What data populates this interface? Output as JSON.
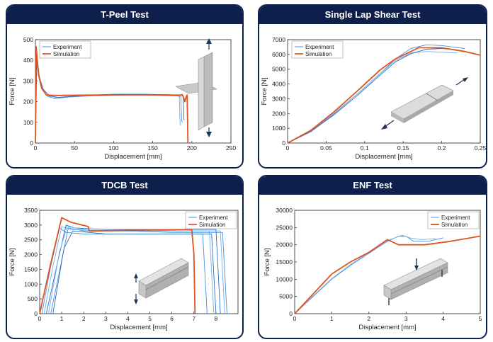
{
  "chart_data": [
    {
      "type": "line",
      "title": "T-Peel Test",
      "xlabel": "Displacement [mm]",
      "ylabel": "Force [N]",
      "xlim": [
        0,
        250
      ],
      "ylim": [
        0,
        500
      ],
      "xticks": [
        0,
        50,
        100,
        150,
        200,
        250
      ],
      "yticks": [
        0,
        100,
        200,
        300,
        400,
        500
      ],
      "legend": [
        "Experiment",
        "Simulation"
      ],
      "legend_position": "top-left",
      "series": [
        {
          "name": "Experiment",
          "color": "#4a90e2",
          "points": [
            [
              0,
              0
            ],
            [
              1,
              440
            ],
            [
              3,
              360
            ],
            [
              6,
              300
            ],
            [
              10,
              255
            ],
            [
              16,
              225
            ],
            [
              25,
              215
            ],
            [
              40,
              222
            ],
            [
              70,
              228
            ],
            [
              100,
              231
            ],
            [
              130,
              233
            ],
            [
              160,
              230
            ],
            [
              180,
              228
            ],
            [
              186,
              225
            ],
            [
              187,
              110
            ],
            [
              188,
              100
            ]
          ]
        },
        {
          "name": "Experiment",
          "color": "#6fb0ea",
          "points": [
            [
              0,
              0
            ],
            [
              1,
              430
            ],
            [
              4,
              340
            ],
            [
              8,
              275
            ],
            [
              14,
              235
            ],
            [
              22,
              218
            ],
            [
              40,
              225
            ],
            [
              80,
              232
            ],
            [
              120,
              234
            ],
            [
              160,
              232
            ],
            [
              184,
              230
            ],
            [
              185,
              95
            ],
            [
              186,
              85
            ]
          ]
        },
        {
          "name": "Experiment",
          "color": "#2a6fbd",
          "points": [
            [
              0,
              0
            ],
            [
              2,
              420
            ],
            [
              5,
              320
            ],
            [
              10,
              260
            ],
            [
              18,
              228
            ],
            [
              30,
              220
            ],
            [
              60,
              230
            ],
            [
              100,
              236
            ],
            [
              140,
              236
            ],
            [
              175,
              233
            ],
            [
              189,
              230
            ],
            [
              190,
              110
            ]
          ]
        },
        {
          "name": "Simulation",
          "color": "#e0531e",
          "points": [
            [
              0,
              0
            ],
            [
              1,
              465
            ],
            [
              2,
              420
            ],
            [
              4,
              330
            ],
            [
              8,
              265
            ],
            [
              14,
              232
            ],
            [
              25,
              230
            ],
            [
              100,
              233
            ],
            [
              150,
              233
            ],
            [
              187,
              232
            ],
            [
              187,
              235
            ],
            [
              188,
              232
            ],
            [
              190,
              215
            ],
            [
              191,
              200
            ],
            [
              193,
              225
            ],
            [
              194,
              232
            ],
            [
              195,
              0
            ]
          ]
        }
      ]
    },
    {
      "type": "line",
      "title": "Single Lap Shear Test",
      "xlabel": "Displacement [mm]",
      "ylabel": "Force [N]",
      "xlim": [
        0,
        0.25
      ],
      "ylim": [
        0,
        7000
      ],
      "xticks": [
        0,
        0.05,
        0.1,
        0.15,
        0.2,
        0.25
      ],
      "yticks": [
        0,
        1000,
        2000,
        3000,
        4000,
        5000,
        6000,
        7000
      ],
      "legend": [
        "Experiment",
        "Simulation"
      ],
      "legend_position": "top-left",
      "series": [
        {
          "name": "Experiment",
          "color": "#4a90e2",
          "points": [
            [
              0,
              0
            ],
            [
              0.03,
              800
            ],
            [
              0.06,
              2000
            ],
            [
              0.09,
              3300
            ],
            [
              0.12,
              4700
            ],
            [
              0.14,
              5700
            ],
            [
              0.16,
              6400
            ],
            [
              0.18,
              6650
            ],
            [
              0.2,
              6600
            ],
            [
              0.23,
              6400
            ]
          ]
        },
        {
          "name": "Experiment",
          "color": "#6fb0ea",
          "points": [
            [
              0,
              0
            ],
            [
              0.03,
              750
            ],
            [
              0.06,
              1950
            ],
            [
              0.09,
              3300
            ],
            [
              0.12,
              4700
            ],
            [
              0.14,
              5600
            ],
            [
              0.16,
              6100
            ],
            [
              0.18,
              6200
            ],
            [
              0.2,
              6150
            ],
            [
              0.22,
              6100
            ]
          ]
        },
        {
          "name": "Experiment",
          "color": "#2a6fbd",
          "points": [
            [
              0,
              0
            ],
            [
              0.03,
              780
            ],
            [
              0.06,
              1900
            ],
            [
              0.09,
              3200
            ],
            [
              0.12,
              4600
            ],
            [
              0.14,
              5500
            ],
            [
              0.16,
              6050
            ],
            [
              0.18,
              6350
            ],
            [
              0.2,
              6400
            ],
            [
              0.22,
              6300
            ]
          ]
        },
        {
          "name": "Simulation",
          "color": "#e0531e",
          "points": [
            [
              0,
              0
            ],
            [
              0.03,
              850
            ],
            [
              0.06,
              2100
            ],
            [
              0.09,
              3500
            ],
            [
              0.12,
              4950
            ],
            [
              0.14,
              5700
            ],
            [
              0.16,
              6200
            ],
            [
              0.17,
              6450
            ],
            [
              0.2,
              6450
            ],
            [
              0.23,
              6200
            ],
            [
              0.25,
              5950
            ]
          ]
        }
      ]
    },
    {
      "type": "line",
      "title": "TDCB Test",
      "xlabel": "Displacement [mm]",
      "ylabel": "Force [N]",
      "xlim": [
        0,
        9
      ],
      "ylim": [
        0,
        3500
      ],
      "xticks": [
        0,
        1,
        2,
        3,
        4,
        5,
        6,
        7,
        8
      ],
      "yticks": [
        0,
        500,
        1000,
        1500,
        2000,
        2500,
        3000,
        3500
      ],
      "legend": [
        "Experiment",
        "Simulation"
      ],
      "legend_position": "top-right",
      "series": [
        {
          "name": "Experiment",
          "color": "#4a90e2",
          "points": [
            [
              0.1,
              0
            ],
            [
              0.5,
              1600
            ],
            [
              0.9,
              2900
            ],
            [
              1.2,
              2750
            ],
            [
              2,
              2700
            ],
            [
              4,
              2700
            ],
            [
              6,
              2700
            ],
            [
              7.4,
              2700
            ],
            [
              7.6,
              0
            ]
          ]
        },
        {
          "name": "Experiment",
          "color": "#6fb0ea",
          "points": [
            [
              0.2,
              0
            ],
            [
              0.6,
              1600
            ],
            [
              1.0,
              2950
            ],
            [
              1.4,
              2850
            ],
            [
              3,
              2800
            ],
            [
              5,
              2800
            ],
            [
              7.7,
              2800
            ],
            [
              7.9,
              0
            ]
          ]
        },
        {
          "name": "Experiment",
          "color": "#2a6fbd",
          "points": [
            [
              0.3,
              0
            ],
            [
              0.8,
              1700
            ],
            [
              1.2,
              3000
            ],
            [
              1.6,
              2900
            ],
            [
              3,
              2850
            ],
            [
              6,
              2850
            ],
            [
              8.0,
              2850
            ],
            [
              8.2,
              0
            ]
          ]
        },
        {
          "name": "Experiment",
          "color": "#4a90e2",
          "points": [
            [
              0.5,
              0
            ],
            [
              1.0,
              1800
            ],
            [
              1.3,
              2900
            ],
            [
              2,
              2800
            ],
            [
              4,
              2800
            ],
            [
              6,
              2750
            ],
            [
              8.3,
              2750
            ],
            [
              8.5,
              0
            ]
          ]
        },
        {
          "name": "Experiment",
          "color": "#6fb0ea",
          "points": [
            [
              0.4,
              0
            ],
            [
              0.9,
              2100
            ],
            [
              1.25,
              2950
            ],
            [
              2.4,
              2800
            ],
            [
              5,
              2800
            ],
            [
              8.2,
              2800
            ],
            [
              8.4,
              0
            ]
          ]
        },
        {
          "name": "Experiment",
          "color": "#2a6fbd",
          "points": [
            [
              0.6,
              0
            ],
            [
              1.1,
              2200
            ],
            [
              1.5,
              2800
            ],
            [
              3,
              2700
            ],
            [
              6,
              2700
            ],
            [
              7.8,
              2700
            ],
            [
              8.0,
              0
            ]
          ]
        },
        {
          "name": "Simulation",
          "color": "#e0531e",
          "points": [
            [
              0,
              0
            ],
            [
              0.5,
              1700
            ],
            [
              1.0,
              3250
            ],
            [
              1.4,
              3100
            ],
            [
              2.2,
              2950
            ],
            [
              2.25,
              2800
            ],
            [
              4,
              2820
            ],
            [
              6,
              2840
            ],
            [
              6.9,
              2850
            ],
            [
              7.0,
              2000
            ],
            [
              7.05,
              0
            ]
          ]
        }
      ]
    },
    {
      "type": "line",
      "title": "ENF Test",
      "xlabel": "Displacement [mm]",
      "ylabel": "Force [N]",
      "xlim": [
        0,
        5
      ],
      "ylim": [
        0,
        30000
      ],
      "xticks": [
        0,
        1,
        2,
        3,
        4,
        5
      ],
      "yticks": [
        0,
        5000,
        10000,
        15000,
        20000,
        25000,
        30000
      ],
      "legend": [
        "Experiment",
        "Simulation"
      ],
      "legend_position": "top-right",
      "series": [
        {
          "name": "Experiment",
          "color": "#4a90e2",
          "points": [
            [
              0,
              0
            ],
            [
              0.5,
              5000
            ],
            [
              1,
              10000
            ],
            [
              1.5,
              14000
            ],
            [
              2,
              17500
            ],
            [
              2.5,
              21000
            ],
            [
              2.8,
              22500
            ],
            [
              3.0,
              22500
            ],
            [
              3.2,
              21000
            ],
            [
              3.6,
              21000
            ],
            [
              4,
              22000
            ]
          ]
        },
        {
          "name": "Experiment",
          "color": "#6fb0ea",
          "points": [
            [
              0,
              0
            ],
            [
              0.5,
              5200
            ],
            [
              1,
              10200
            ],
            [
              1.5,
              14200
            ],
            [
              2,
              17800
            ],
            [
              2.5,
              21200
            ],
            [
              2.9,
              22800
            ],
            [
              3.1,
              22000
            ],
            [
              3.4,
              21500
            ],
            [
              3.8,
              21800
            ]
          ]
        },
        {
          "name": "Simulation",
          "color": "#e0531e",
          "points": [
            [
              0,
              0
            ],
            [
              1,
              11500
            ],
            [
              1.5,
              15000
            ],
            [
              2.0,
              17800
            ],
            [
              2.5,
              21500
            ],
            [
              2.8,
              20000
            ],
            [
              3.5,
              20000
            ],
            [
              4.2,
              21000
            ],
            [
              5,
              22500
            ]
          ]
        }
      ]
    }
  ]
}
